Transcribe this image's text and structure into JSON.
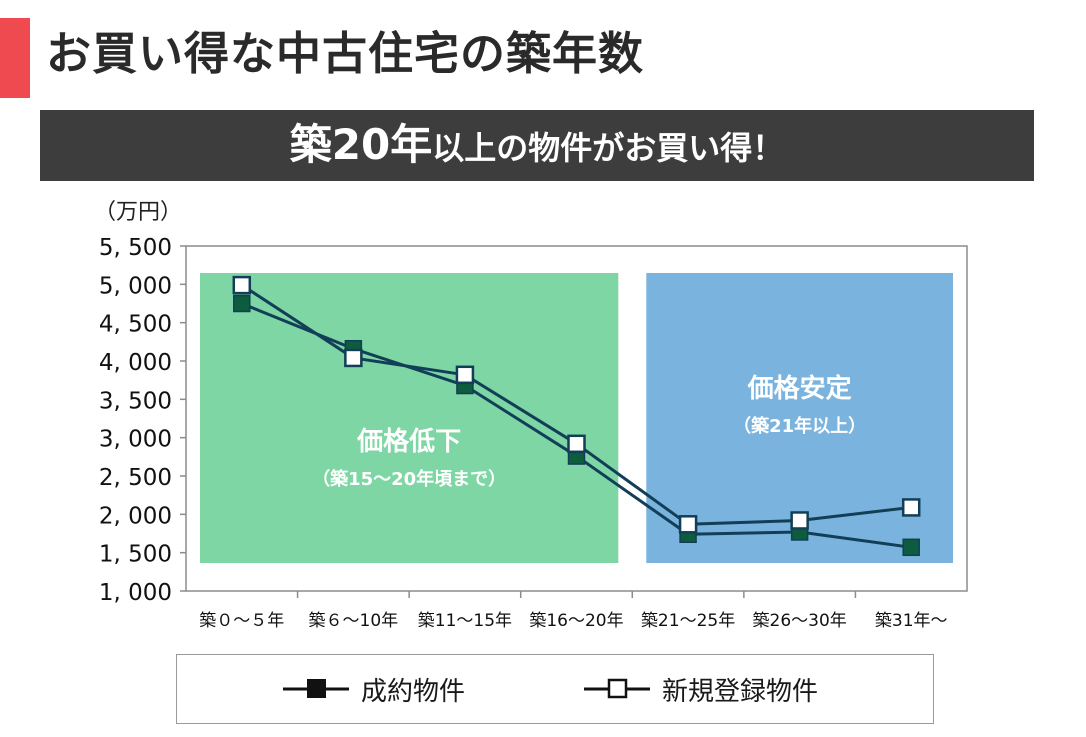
{
  "header": {
    "title": "お買い得な中古住宅の築年数",
    "accent_color": "#ee4a4f"
  },
  "banner": {
    "part1": "築20年",
    "part2": "以上の物件がお買い得！",
    "background": "#3d3d3d"
  },
  "chart_data": {
    "type": "line",
    "yunit": "（万円）",
    "categories": [
      "築０～５年",
      "築６～10年",
      "築11～15年",
      "築16～20年",
      "築21～25年",
      "築26～30年",
      "築31年～"
    ],
    "series": [
      {
        "name": "成約物件",
        "marker": "filled-square",
        "values": [
          4750,
          4160,
          3680,
          2760,
          1740,
          1770,
          1570
        ]
      },
      {
        "name": "新規登録物件",
        "marker": "open-square",
        "values": [
          4990,
          4040,
          3820,
          2920,
          1870,
          1920,
          2090
        ]
      }
    ],
    "ylim": [
      1000,
      5500
    ],
    "yticks": [
      1000,
      1500,
      2000,
      2500,
      3000,
      3500,
      4000,
      4500,
      5000,
      5500
    ],
    "ytick_labels": [
      "1, 000",
      "1, 500",
      "2, 000",
      "2, 500",
      "3, 000",
      "3, 500",
      "4, 000",
      "4, 500",
      "5, 000",
      "5, 500"
    ],
    "grid": false,
    "legend_position": "bottom",
    "regions": [
      {
        "title": "価格低下",
        "subtitle": "（築15～20年頃まで）",
        "color": "#7fd6a5",
        "from": 0,
        "to": 3
      },
      {
        "title": "価格安定",
        "subtitle": "（築21年以上）",
        "color": "#7ab4de",
        "from": 4,
        "to": 6
      }
    ],
    "colors": {
      "series": "#123f57",
      "marker_filled": "#0d5c3e"
    }
  }
}
